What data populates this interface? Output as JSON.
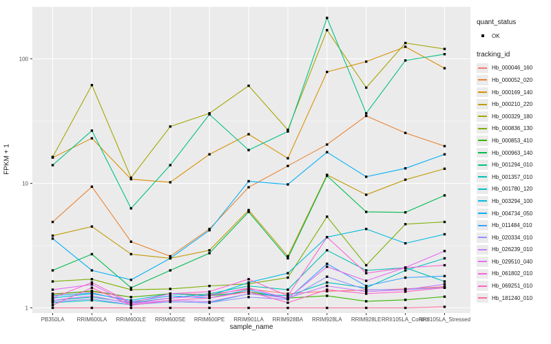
{
  "chart_data": {
    "type": "line",
    "title": "",
    "x_axis": {
      "label": "sample_name",
      "categories": [
        "PB350LA",
        "RRIM600LA",
        "RRIM600LE",
        "RRIM600SE",
        "RRIM600PE",
        "RRIM901LA",
        "RRIM928BA",
        "RRIM928LA",
        "RRIM928LE",
        "RRII105LA_Control",
        "RRII105LA_Stressed"
      ]
    },
    "y_axis": {
      "label": "FPKM + 1",
      "scale": "log10",
      "ticks": [
        1,
        10,
        100
      ],
      "range": [
        0.9,
        260
      ]
    },
    "legend": {
      "position": "right",
      "quant_status": {
        "title": "quant_status",
        "items": [
          "OK"
        ],
        "point_color": "#000000"
      },
      "tracking_id_title": "tracking_id"
    },
    "style": {
      "panel_background": "#EBEBEB",
      "gridline_color": "#FFFFFF",
      "tick_color": "#333333",
      "tick_label_color": "#4D4D4D",
      "point_shape": "filled-square",
      "point_color": "#000000"
    },
    "series": [
      {
        "tracking_id": "Hb_000046_160",
        "color": "#F8766D",
        "values": [
          1.3,
          1.35,
          1.22,
          1.3,
          1.28,
          1.42,
          1.3,
          1.36,
          1.39,
          1.42,
          1.48
        ]
      },
      {
        "tracking_id": "Hb_000052_020",
        "color": "#EA8331",
        "values": [
          4.9,
          9.4,
          3.4,
          2.6,
          4.3,
          9.3,
          13.8,
          20.5,
          34.8,
          25.4,
          19.9
        ]
      },
      {
        "tracking_id": "Hb_000169_140",
        "color": "#D89000",
        "values": [
          16.1,
          23.0,
          10.8,
          10.2,
          17.1,
          24.8,
          15.9,
          78.5,
          95.0,
          125.0,
          84.0
        ]
      },
      {
        "tracking_id": "Hb_000210_220",
        "color": "#C09B00",
        "values": [
          3.8,
          4.5,
          2.7,
          2.5,
          2.9,
          6.1,
          2.6,
          11.7,
          8.1,
          10.7,
          13.1
        ]
      },
      {
        "tracking_id": "Hb_000329_180",
        "color": "#A3A500",
        "values": [
          16.3,
          61.5,
          11.1,
          28.6,
          36.5,
          60.8,
          26.9,
          170.0,
          58.7,
          134.0,
          120.0
        ]
      },
      {
        "tracking_id": "Hb_000836_130",
        "color": "#7CAE00",
        "values": [
          1.63,
          1.7,
          1.4,
          1.42,
          1.5,
          1.56,
          1.75,
          5.4,
          2.2,
          4.7,
          4.9
        ]
      },
      {
        "tracking_id": "Hb_000853_410",
        "color": "#39B600",
        "values": [
          1.28,
          1.37,
          1.22,
          1.3,
          1.25,
          1.35,
          1.2,
          1.25,
          1.13,
          1.16,
          1.23
        ]
      },
      {
        "tracking_id": "Hb_000963_140",
        "color": "#00BB4E",
        "values": [
          2.0,
          2.7,
          1.45,
          2.0,
          2.75,
          5.9,
          2.5,
          11.5,
          5.9,
          5.85,
          8.0
        ]
      },
      {
        "tracking_id": "Hb_001294_010",
        "color": "#00C087",
        "values": [
          14.0,
          26.5,
          6.3,
          14.0,
          35.8,
          18.5,
          26.1,
          213.0,
          36.5,
          97.0,
          109.0
        ]
      },
      {
        "tracking_id": "Hb_001357_010",
        "color": "#00C0B2",
        "values": [
          1.15,
          1.22,
          1.1,
          1.2,
          1.3,
          1.5,
          1.4,
          2.9,
          2.0,
          2.1,
          1.63
        ]
      },
      {
        "tracking_id": "Hb_001780_120",
        "color": "#00BFC4",
        "values": [
          1.1,
          1.15,
          1.06,
          1.12,
          1.1,
          1.3,
          1.25,
          1.6,
          1.45,
          2.0,
          2.5
        ]
      },
      {
        "tracking_id": "Hb_003294_100",
        "color": "#00BAE0",
        "values": [
          1.2,
          1.3,
          1.15,
          1.3,
          1.25,
          1.6,
          1.9,
          3.7,
          4.3,
          3.3,
          3.9
        ]
      },
      {
        "tracking_id": "Hb_004734_050",
        "color": "#00B0F6",
        "values": [
          3.6,
          2.0,
          1.68,
          2.5,
          4.2,
          10.4,
          9.8,
          17.8,
          11.3,
          13.2,
          17.1
        ]
      },
      {
        "tracking_id": "Hb_011484_010",
        "color": "#35A2FF",
        "values": [
          1.25,
          1.32,
          1.12,
          1.25,
          1.2,
          1.4,
          1.18,
          2.26,
          1.5,
          1.75,
          1.8
        ]
      },
      {
        "tracking_id": "Hb_020334_010",
        "color": "#9590FF",
        "values": [
          1.12,
          1.18,
          1.06,
          1.12,
          1.1,
          1.22,
          1.17,
          1.78,
          1.4,
          1.4,
          1.46
        ]
      },
      {
        "tracking_id": "Hb_026239_010",
        "color": "#C77CFF",
        "values": [
          1.15,
          1.25,
          1.08,
          1.15,
          1.12,
          1.3,
          1.2,
          1.5,
          1.35,
          1.4,
          1.55
        ]
      },
      {
        "tracking_id": "Hb_029510_040",
        "color": "#E76BF3",
        "values": [
          1.4,
          1.54,
          1.08,
          1.2,
          1.25,
          1.45,
          1.19,
          2.14,
          1.65,
          2.11,
          2.86
        ]
      },
      {
        "tracking_id": "Hb_061802_010",
        "color": "#FA62DB",
        "values": [
          1.2,
          1.6,
          1.1,
          1.3,
          1.35,
          1.7,
          1.25,
          3.7,
          1.9,
          2.1,
          2.2
        ]
      },
      {
        "tracking_id": "Hb_069251_010",
        "color": "#FF61C3",
        "values": [
          1.05,
          1.45,
          1.05,
          1.15,
          1.2,
          1.35,
          1.1,
          1.4,
          1.3,
          1.35,
          1.45
        ]
      },
      {
        "tracking_id": "Hb_181240_010",
        "color": "#FF6A98",
        "values": [
          1.0,
          1.0,
          1.0,
          1.0,
          1.0,
          1.0,
          1.0,
          1.0,
          1.0,
          1.0,
          1.02
        ]
      }
    ]
  }
}
